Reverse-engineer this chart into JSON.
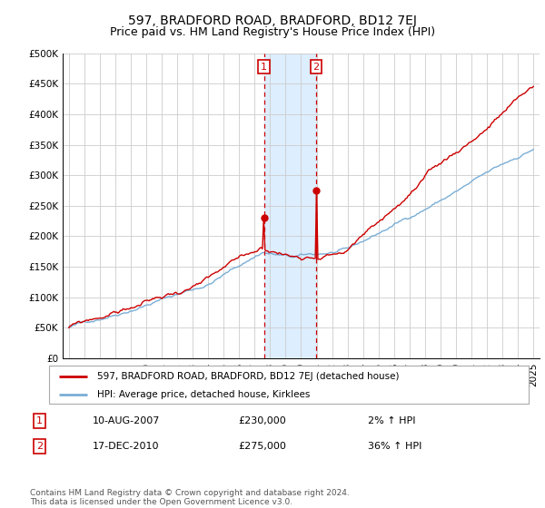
{
  "title": "597, BRADFORD ROAD, BRADFORD, BD12 7EJ",
  "subtitle": "Price paid vs. HM Land Registry's House Price Index (HPI)",
  "ylim": [
    0,
    500000
  ],
  "yticks": [
    0,
    50000,
    100000,
    150000,
    200000,
    250000,
    300000,
    350000,
    400000,
    450000,
    500000
  ],
  "ytick_labels": [
    "£0",
    "£50K",
    "£100K",
    "£150K",
    "£200K",
    "£250K",
    "£300K",
    "£350K",
    "£400K",
    "£450K",
    "£500K"
  ],
  "sale1_year": 2007.61,
  "sale1_price": 230000,
  "sale1_label": "1",
  "sale1_text": "10-AUG-2007",
  "sale1_pct": "2%",
  "sale2_year": 2010.96,
  "sale2_price": 275000,
  "sale2_label": "2",
  "sale2_text": "17-DEC-2010",
  "sale2_pct": "36%",
  "property_color": "#cc0000",
  "hpi_color": "#7aaed6",
  "shade_color": "#ddeeff",
  "legend_property": "597, BRADFORD ROAD, BRADFORD, BD12 7EJ (detached house)",
  "legend_hpi": "HPI: Average price, detached house, Kirklees",
  "footnote": "Contains HM Land Registry data © Crown copyright and database right 2024.\nThis data is licensed under the Open Government Licence v3.0.",
  "title_fontsize": 10,
  "subtitle_fontsize": 9,
  "tick_fontsize": 7.5
}
